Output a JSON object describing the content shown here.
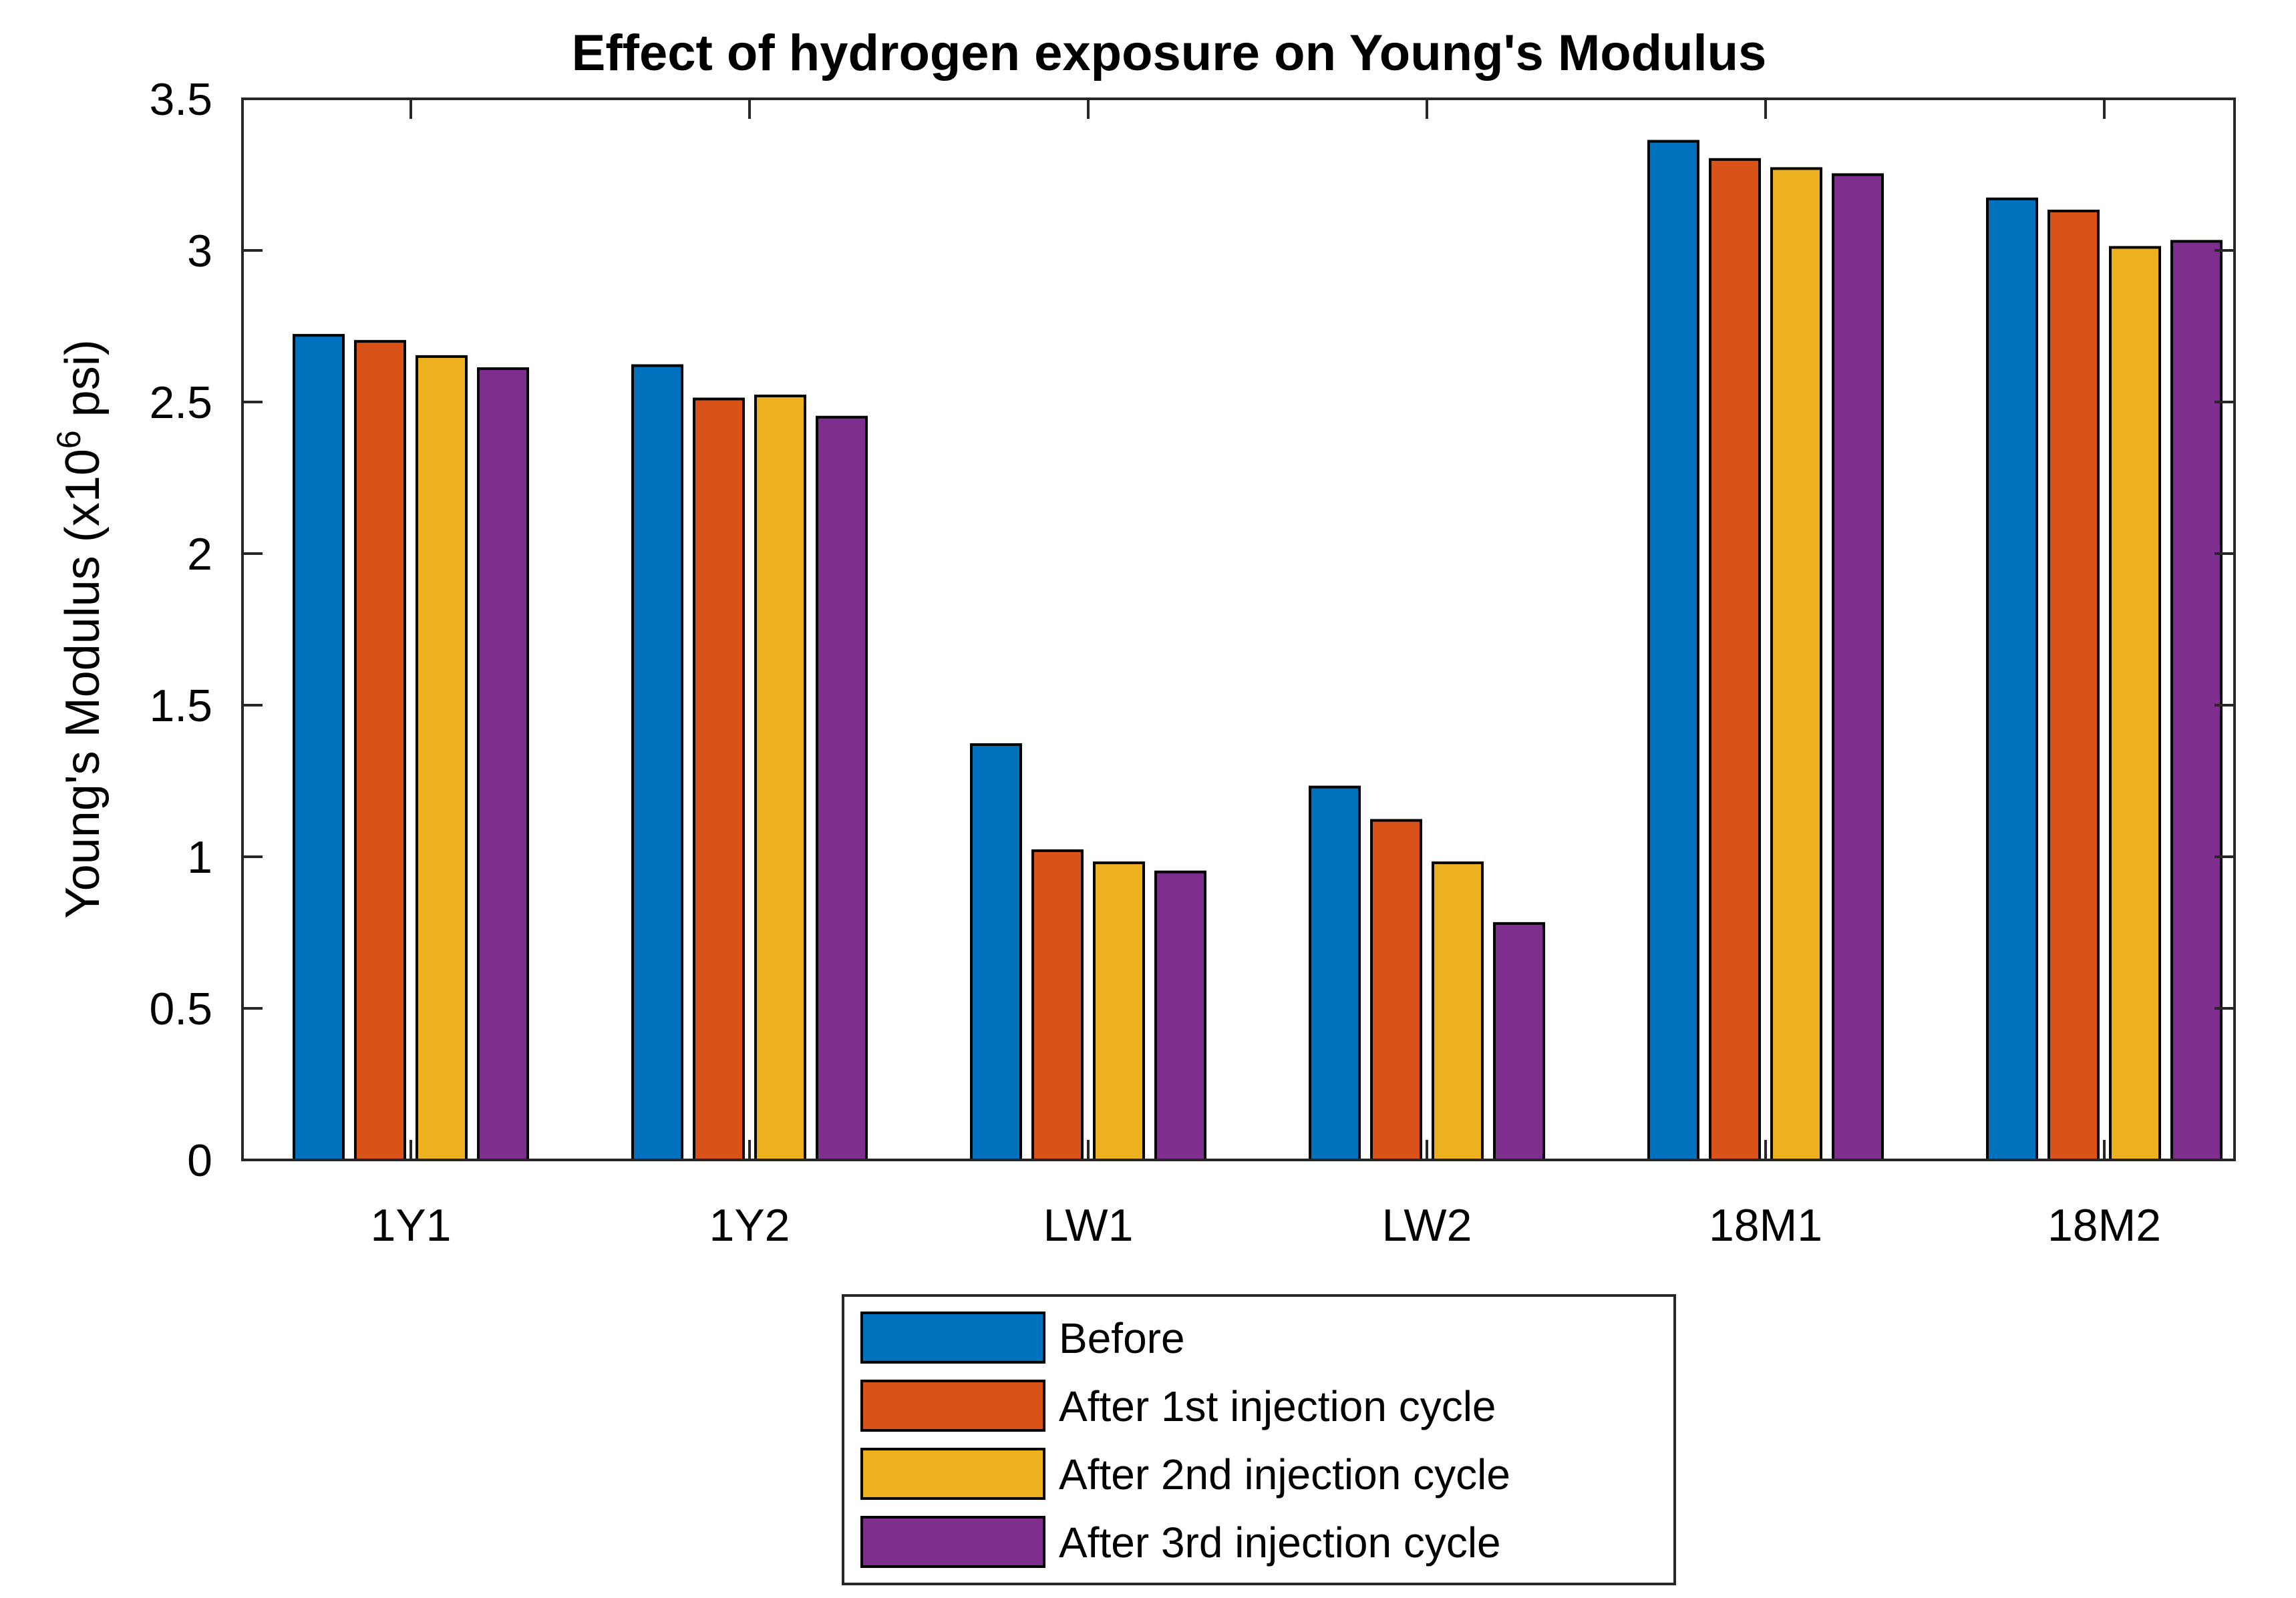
{
  "chart_data": {
    "type": "bar",
    "title": "Effect of hydrogen exposure on Young's Modulus",
    "xlabel": "",
    "ylabel": {
      "prefix": "Young's Modulus (x10",
      "superscript": "6",
      "suffix": " psi)"
    },
    "ylim": [
      0,
      3.5
    ],
    "yticks": [
      "0",
      "0.5",
      "1",
      "1.5",
      "2",
      "2.5",
      "3",
      "3.5"
    ],
    "categories": [
      "1Y1",
      "1Y2",
      "LW1",
      "LW2",
      "18M1",
      "18M2"
    ],
    "series": [
      {
        "name": "Before",
        "color": "#0072BD",
        "values": [
          2.72,
          2.62,
          1.37,
          1.23,
          3.36,
          3.17
        ]
      },
      {
        "name": "After 1st injection cycle",
        "color": "#D95319",
        "values": [
          2.7,
          2.51,
          1.02,
          1.12,
          3.3,
          3.13
        ]
      },
      {
        "name": "After 2nd injection cycle",
        "color": "#EDB120",
        "values": [
          2.65,
          2.52,
          0.98,
          0.98,
          3.27,
          3.01
        ]
      },
      {
        "name": "After 3rd injection cycle",
        "color": "#7E2F8E",
        "values": [
          2.61,
          2.45,
          0.95,
          0.78,
          3.25,
          3.03
        ]
      }
    ],
    "legend_position": "bottom-center",
    "grid": false
  }
}
